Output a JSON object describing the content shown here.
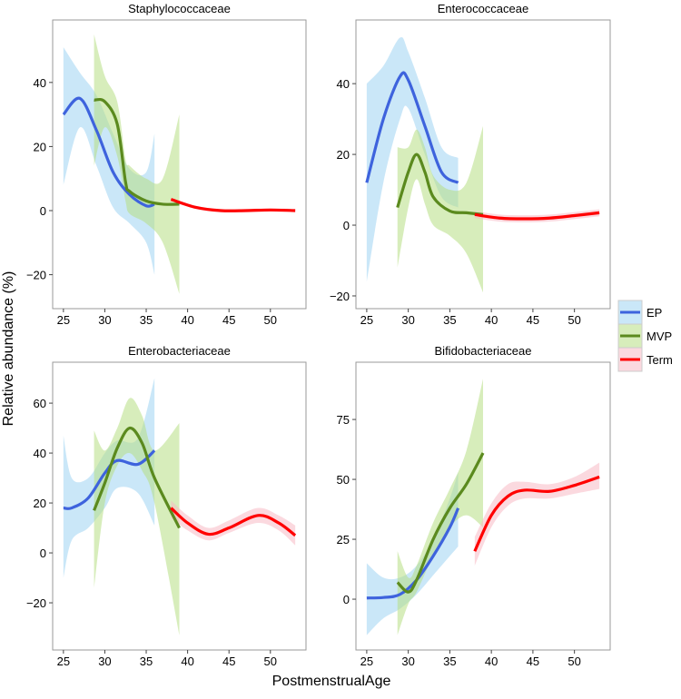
{
  "chart_data": {
    "type": "line",
    "xlabel": "PostmenstrualAge",
    "ylabel": "Relative abundance (%)",
    "legend": {
      "placement": "right",
      "entries": [
        {
          "name": "EP",
          "line": "#3e63dd",
          "fill": "#9fd3f2"
        },
        {
          "name": "MVP",
          "line": "#5b8a1e",
          "fill": "#b7de83"
        },
        {
          "name": "Term",
          "line": "#ff0000",
          "fill": "#f7b9c4"
        }
      ]
    },
    "xticks": [
      25,
      30,
      35,
      40,
      45,
      50
    ],
    "xlim": [
      23.7,
      54.3
    ],
    "facets": [
      {
        "title": "Staphylococcaceae",
        "ylim": [
          -30.6,
          59.5
        ],
        "yticks": [
          -20,
          0,
          20,
          40
        ],
        "series": {
          "EP": [
            [
              25,
              30,
              8,
              51
            ],
            [
              27,
              35,
              26,
              43
            ],
            [
              29,
              25,
              14,
              36
            ],
            [
              31,
              12,
              1,
              24
            ],
            [
              33,
              5,
              -4,
              13
            ],
            [
              35,
              1.5,
              -10,
              12
            ],
            [
              36,
              2,
              -20,
              24
            ]
          ],
          "MVP": [
            [
              28.7,
              34.5,
              14,
              55
            ],
            [
              30,
              34,
              26,
              42
            ],
            [
              31.5,
              27,
              17,
              34
            ],
            [
              32.5,
              9,
              3,
              16
            ],
            [
              33,
              6,
              -1,
              14
            ],
            [
              35,
              3,
              -4,
              10
            ],
            [
              37,
              2,
              -10,
              10
            ],
            [
              39,
              2,
              -26,
              30
            ]
          ],
          "Term": [
            [
              38,
              3.5,
              3,
              4
            ],
            [
              41,
              1,
              0.5,
              1.5
            ],
            [
              44,
              0,
              -0.5,
              0.5
            ],
            [
              47,
              0,
              -0.5,
              0.5
            ],
            [
              50,
              0.2,
              -0.3,
              0.7
            ],
            [
              53,
              0,
              -0.5,
              0.5
            ]
          ]
        }
      },
      {
        "title": "Enterococcaceae",
        "ylim": [
          -23.6,
          58
        ],
        "yticks": [
          -20,
          0,
          20,
          40
        ],
        "series": {
          "EP": [
            [
              25,
              12,
              -16,
              40
            ],
            [
              27,
              30,
              12,
              45
            ],
            [
              29,
              42,
              30,
              53
            ],
            [
              30,
              41,
              33,
              49
            ],
            [
              32,
              28,
              20,
              36
            ],
            [
              34,
              15,
              8,
              22
            ],
            [
              36,
              12,
              5,
              19
            ]
          ],
          "MVP": [
            [
              28.7,
              5,
              -12,
              22
            ],
            [
              30,
              15,
              5,
              22
            ],
            [
              31,
              20,
              13,
              27
            ],
            [
              32,
              15,
              6,
              22
            ],
            [
              33,
              8,
              0,
              14
            ],
            [
              35,
              4,
              -3,
              10
            ],
            [
              37,
              3.5,
              -8,
              12
            ],
            [
              39,
              3,
              -19,
              28
            ]
          ],
          "Term": [
            [
              38,
              3,
              2,
              4
            ],
            [
              41,
              2,
              1,
              3
            ],
            [
              44,
              1.8,
              0.8,
              2.8
            ],
            [
              47,
              2,
              1,
              3
            ],
            [
              50,
              2.7,
              1.7,
              3.7
            ],
            [
              53,
              3.5,
              2.5,
              4.5
            ]
          ]
        }
      },
      {
        "title": "Enterobacteriaceae",
        "ylim": [
          -38.9,
          76.4
        ],
        "yticks": [
          -20,
          0,
          20,
          40,
          60
        ],
        "series": {
          "EP": [
            [
              25,
              18,
              -10,
              47
            ],
            [
              26,
              18,
              5,
              30
            ],
            [
              28,
              22,
              10,
              30
            ],
            [
              30,
              32,
              18,
              40
            ],
            [
              31.5,
              37,
              26,
              45
            ],
            [
              34,
              35.5,
              24,
              46
            ],
            [
              36,
              41,
              11,
              70
            ]
          ],
          "MVP": [
            [
              28.7,
              17,
              -14,
              49
            ],
            [
              30,
              28,
              20,
              41
            ],
            [
              31.5,
              42,
              35,
              50
            ],
            [
              33,
              50,
              40,
              62
            ],
            [
              34.5,
              44,
              33,
              55
            ],
            [
              36,
              30,
              20,
              41
            ],
            [
              39,
              10,
              -33,
              52
            ]
          ],
          "Term": [
            [
              38,
              18,
              14,
              21
            ],
            [
              40,
              12,
              9,
              15
            ],
            [
              42.5,
              7.5,
              5,
              10
            ],
            [
              45,
              10,
              8,
              13
            ],
            [
              48.5,
              15,
              12,
              18
            ],
            [
              51,
              12,
              9,
              15
            ],
            [
              53,
              7,
              3,
              11
            ]
          ]
        }
      },
      {
        "title": "Bifidobacteriaceae",
        "ylim": [
          -21.2,
          98.9
        ],
        "yticks": [
          0,
          25,
          50,
          75
        ],
        "series": {
          "EP": [
            [
              25,
              0.5,
              -15,
              15
            ],
            [
              27,
              0.7,
              -8,
              9
            ],
            [
              29,
              2,
              -4,
              9
            ],
            [
              31,
              8,
              2,
              14
            ],
            [
              33,
              18,
              10,
              25
            ],
            [
              35,
              30,
              18,
              42
            ],
            [
              36,
              38,
              22,
              53
            ]
          ],
          "MVP": [
            [
              28.7,
              7,
              -15,
              20
            ],
            [
              30,
              3,
              -2,
              9
            ],
            [
              31,
              8,
              3,
              14
            ],
            [
              33,
              25,
              18,
              32
            ],
            [
              35,
              38,
              30,
              46
            ],
            [
              37,
              48,
              35,
              62
            ],
            [
              39,
              61,
              30,
              92
            ]
          ],
          "Term": [
            [
              38,
              20,
              14,
              26
            ],
            [
              40,
              35,
              30,
              40
            ],
            [
              42,
              43,
              39,
              48
            ],
            [
              44,
              45.5,
              42,
              49
            ],
            [
              47,
              45,
              42,
              48
            ],
            [
              50,
              47.5,
              44,
              51
            ],
            [
              53,
              51,
              46,
              57
            ]
          ]
        }
      }
    ]
  }
}
